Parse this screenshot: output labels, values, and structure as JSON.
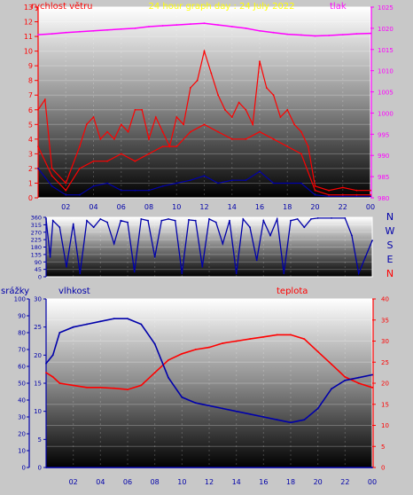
{
  "colors": {
    "speed": "#ff0000",
    "gust": "#ff0000",
    "direction": "#0000aa",
    "pressure": "#ff00ff",
    "humidity": "#0000aa",
    "temperature": "#ff0000",
    "rain": "#0000aa",
    "title": "#ffff00",
    "frame": "#ffffff"
  },
  "chart_data": [
    {
      "type": "line",
      "title": "24 hour graph day : 24 July 2022",
      "label_left": "rychlost větru",
      "label_right": "tlak",
      "x_tick_labels": [
        "02",
        "04",
        "06",
        "08",
        "10",
        "12",
        "14",
        "16",
        "18",
        "20",
        "22",
        "00"
      ],
      "x_tick_hours": [
        2,
        4,
        6,
        8,
        10,
        12,
        14,
        16,
        18,
        20,
        22,
        24
      ],
      "y_left_ticks": [
        "0",
        "1",
        "2",
        "3",
        "4",
        "5",
        "6",
        "7",
        "8",
        "9",
        "10",
        "11",
        "12",
        "13"
      ],
      "ylim_left": [
        0,
        13
      ],
      "y_right_ticks": [
        "980",
        "985",
        "990",
        "995",
        "1000",
        "1005",
        "1010",
        "1015",
        "1020",
        "1025"
      ],
      "ylim_right": [
        980,
        1025
      ],
      "xlim": [
        0,
        24
      ],
      "series": [
        {
          "role": "pressure",
          "x": [
            0,
            1,
            2,
            3,
            4,
            5,
            6,
            7,
            8,
            9,
            10,
            11,
            12,
            13,
            14,
            15,
            16,
            17,
            18,
            19,
            20,
            21,
            22,
            23,
            24
          ],
          "values": [
            1018.5,
            1018.7,
            1019.0,
            1019.2,
            1019.4,
            1019.6,
            1019.8,
            1020.0,
            1020.4,
            1020.6,
            1020.8,
            1021.0,
            1021.2,
            1020.8,
            1020.4,
            1020.0,
            1019.4,
            1019.0,
            1018.6,
            1018.4,
            1018.2,
            1018.3,
            1018.5,
            1018.7,
            1018.8
          ]
        },
        {
          "role": "wind-speed",
          "x": [
            0,
            1,
            2,
            3,
            4,
            5,
            6,
            7,
            8,
            9,
            10,
            11,
            12,
            13,
            14,
            15,
            16,
            17,
            18,
            19,
            20,
            21,
            22,
            23,
            24
          ],
          "values": [
            3.5,
            1.5,
            0.5,
            2.0,
            2.5,
            2.5,
            3.0,
            2.5,
            3.0,
            3.5,
            3.5,
            4.5,
            5.0,
            4.5,
            4.0,
            4.0,
            4.5,
            4.0,
            3.5,
            3.0,
            0.5,
            0.2,
            0.2,
            0.2,
            0.2
          ]
        },
        {
          "role": "wind-gust",
          "x": [
            0,
            0.5,
            1,
            2,
            3,
            3.5,
            4,
            4.5,
            5,
            5.5,
            6,
            6.5,
            7,
            7.5,
            8,
            8.5,
            9,
            9.5,
            10,
            10.5,
            11,
            11.5,
            12,
            12.5,
            13,
            13.5,
            14,
            14.5,
            15,
            15.5,
            16,
            16.5,
            17,
            17.5,
            18,
            18.5,
            19,
            19.5,
            20,
            21,
            22,
            23,
            24
          ],
          "values": [
            6.0,
            6.7,
            2.0,
            1.0,
            3.5,
            5.0,
            5.5,
            4.0,
            4.5,
            4.0,
            5.0,
            4.5,
            6.0,
            6.0,
            4.0,
            5.5,
            4.5,
            3.5,
            5.5,
            5.0,
            7.5,
            8.0,
            10.0,
            8.5,
            7.0,
            6.0,
            5.5,
            6.5,
            6.0,
            5.0,
            9.3,
            7.5,
            7.0,
            5.5,
            6.0,
            5.0,
            4.5,
            3.5,
            0.8,
            0.5,
            0.7,
            0.5,
            0.5
          ]
        },
        {
          "role": "wind-avg",
          "x": [
            0,
            1,
            2,
            3,
            4,
            5,
            6,
            7,
            8,
            9,
            10,
            11,
            12,
            13,
            14,
            15,
            16,
            17,
            18,
            19,
            20,
            21,
            22,
            23,
            24
          ],
          "values": [
            2.0,
            0.8,
            0.2,
            0.2,
            0.8,
            1.0,
            0.5,
            0.5,
            0.5,
            0.8,
            1.0,
            1.2,
            1.5,
            1.0,
            1.2,
            1.2,
            1.8,
            1.0,
            1.0,
            1.0,
            0.2,
            0.1,
            0.1,
            0.1,
            0.1
          ]
        }
      ]
    },
    {
      "type": "line",
      "title": "",
      "right_labels": [
        "N",
        "W",
        "S",
        "E",
        "N"
      ],
      "y_ticks": [
        "0",
        "45",
        "90",
        "135",
        "180",
        "225",
        "270",
        "315",
        "360"
      ],
      "ylim": [
        0,
        360
      ],
      "xlim": [
        0,
        24
      ],
      "series": [
        {
          "role": "wind-direction",
          "x": [
            0,
            0.3,
            0.5,
            1,
            1.5,
            2,
            2.5,
            3,
            3.5,
            4,
            4.5,
            5,
            5.5,
            6,
            6.5,
            7,
            7.5,
            8,
            8.5,
            9,
            9.5,
            10,
            10.5,
            11,
            11.5,
            12,
            12.5,
            13,
            13.5,
            14,
            14.5,
            15,
            15.5,
            16,
            16.5,
            17,
            17.5,
            18,
            18.5,
            19,
            19.5,
            20,
            21,
            22,
            22.5,
            23,
            23.5,
            24
          ],
          "values": [
            350,
            120,
            340,
            300,
            60,
            320,
            20,
            340,
            300,
            350,
            330,
            200,
            340,
            330,
            30,
            350,
            340,
            120,
            340,
            350,
            340,
            20,
            345,
            340,
            60,
            350,
            330,
            200,
            340,
            20,
            350,
            300,
            100,
            340,
            250,
            350,
            20,
            340,
            350,
            300,
            350,
            355,
            355,
            355,
            250,
            20,
            120,
            220
          ]
        }
      ]
    },
    {
      "type": "line",
      "title": "",
      "label_rain": "srážky",
      "label_humidity": "vlhkost",
      "label_temperature": "teplota",
      "x_tick_labels": [
        "02",
        "04",
        "06",
        "08",
        "10",
        "12",
        "14",
        "16",
        "18",
        "20",
        "22",
        "00"
      ],
      "x_tick_hours": [
        2,
        4,
        6,
        8,
        10,
        12,
        14,
        16,
        18,
        20,
        22,
        24
      ],
      "y_rain_ticks": [
        "0",
        "10",
        "20",
        "30",
        "40",
        "50",
        "60",
        "70",
        "80",
        "90",
        "100"
      ],
      "ylim_rain": [
        0,
        100
      ],
      "y_humidity_ticks": [
        "0",
        "5",
        "10",
        "15",
        "20",
        "25",
        "30"
      ],
      "ylim_humidity": [
        0,
        30
      ],
      "y_temperature_ticks": [
        "0",
        "5",
        "10",
        "15",
        "20",
        "25",
        "30",
        "35",
        "40"
      ],
      "ylim_temperature": [
        0,
        40
      ],
      "xlim": [
        0,
        24
      ],
      "series": [
        {
          "role": "temperature",
          "x": [
            0,
            0.5,
            1,
            2,
            3,
            4,
            5,
            6,
            7,
            8,
            9,
            10,
            11,
            12,
            13,
            14,
            15,
            16,
            17,
            18,
            19,
            20,
            21,
            22,
            23,
            24
          ],
          "values": [
            22.5,
            21.5,
            20.0,
            19.5,
            19.0,
            19.0,
            18.8,
            18.5,
            19.5,
            22.5,
            25.5,
            27.0,
            28.0,
            28.5,
            29.5,
            30.0,
            30.5,
            31.0,
            31.5,
            31.5,
            30.5,
            27.5,
            24.5,
            21.5,
            20.0,
            19.0
          ]
        },
        {
          "role": "humidity",
          "x": [
            0,
            0.5,
            1,
            2,
            3,
            4,
            5,
            6,
            7,
            8,
            9,
            10,
            11,
            12,
            13,
            14,
            15,
            16,
            17,
            18,
            19,
            20,
            21,
            22,
            23,
            24
          ],
          "values": [
            18.5,
            20.0,
            24.0,
            25.0,
            25.5,
            26.0,
            26.5,
            26.5,
            25.5,
            22.0,
            16.0,
            12.5,
            11.5,
            11.0,
            10.5,
            10.0,
            9.5,
            9.0,
            8.5,
            8.0,
            8.5,
            10.5,
            14.0,
            15.5,
            16.0,
            16.5
          ]
        },
        {
          "role": "rain",
          "x": [
            0,
            24
          ],
          "values": [
            0,
            0
          ]
        }
      ]
    }
  ]
}
